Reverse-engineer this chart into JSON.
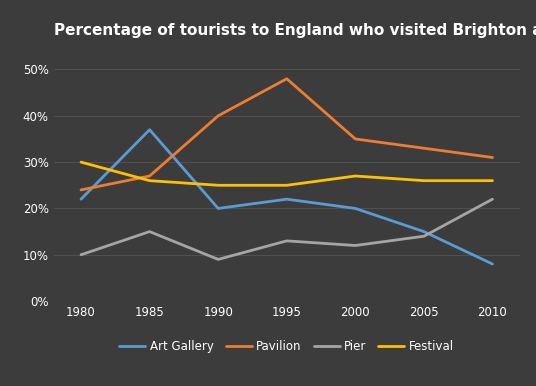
{
  "title": "Percentage of tourists to England who visited Brighton attractions",
  "years": [
    1980,
    1985,
    1990,
    1995,
    2000,
    2005,
    2010
  ],
  "series": {
    "Art Gallery": {
      "values": [
        22,
        37,
        20,
        22,
        20,
        15,
        8
      ],
      "color": "#5B9BD5",
      "marker": null
    },
    "Pavilion": {
      "values": [
        24,
        27,
        40,
        48,
        35,
        33,
        31
      ],
      "color": "#ED7D31",
      "marker": null
    },
    "Pier": {
      "values": [
        10,
        15,
        9,
        13,
        12,
        14,
        22
      ],
      "color": "#A5A5A5",
      "marker": null
    },
    "Festival": {
      "values": [
        30,
        26,
        25,
        25,
        27,
        26,
        26
      ],
      "color": "#FFC000",
      "marker": null
    }
  },
  "ylim": [
    0,
    55
  ],
  "yticks": [
    0,
    10,
    20,
    30,
    40,
    50
  ],
  "xlim": [
    1978,
    2012
  ],
  "background_color": "#3C3C3C",
  "grid_color": "#555555",
  "text_color": "#ffffff",
  "title_fontsize": 11,
  "legend_fontsize": 8.5,
  "axis_fontsize": 8.5,
  "linewidth": 2.0
}
